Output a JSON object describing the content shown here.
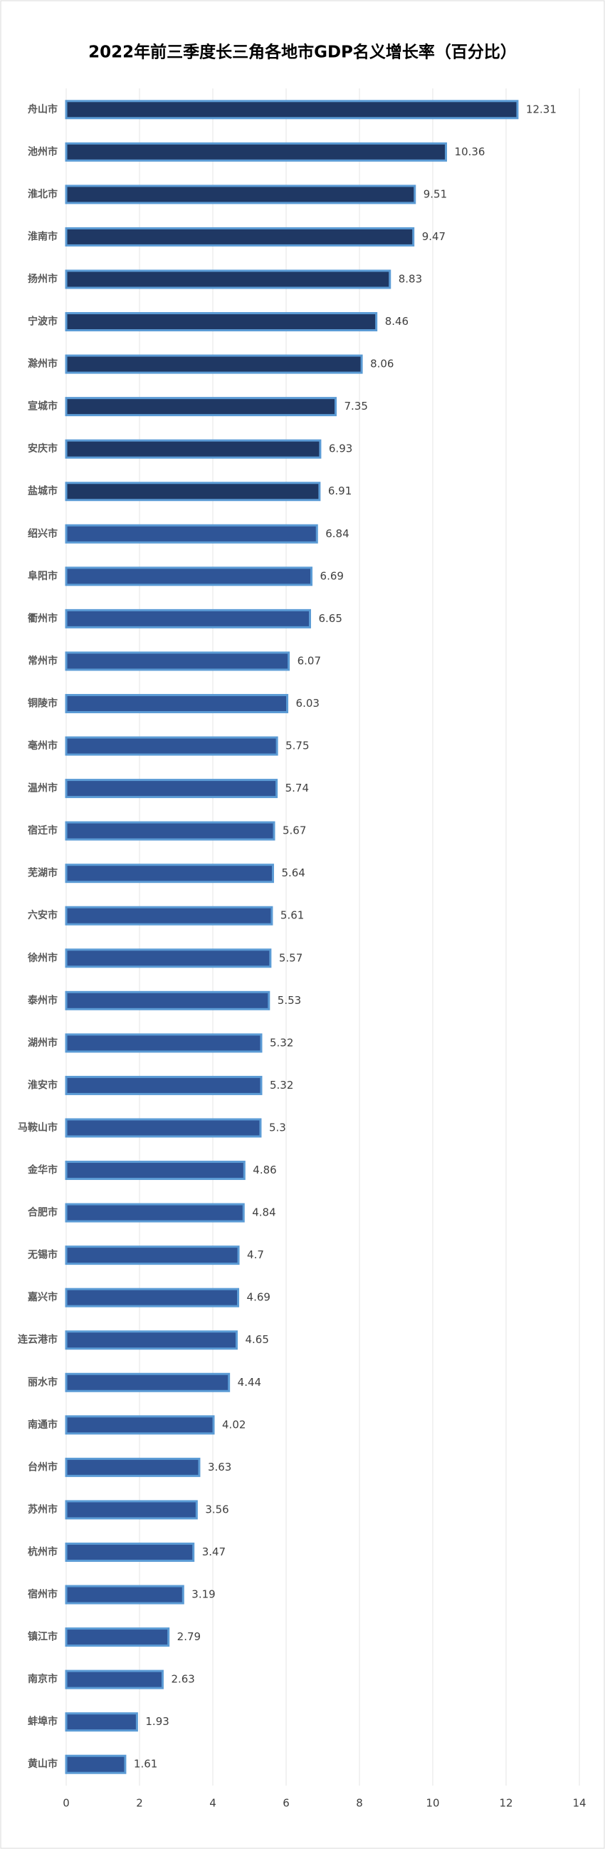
{
  "chart_data": {
    "type": "barh",
    "title": "2022年前三季度长三角各地市GDP名义增长率（百分比）",
    "categories": [
      "舟山市",
      "池州市",
      "淮北市",
      "淮南市",
      "扬州市",
      "宁波市",
      "滁州市",
      "宣城市",
      "安庆市",
      "盐城市",
      "绍兴市",
      "阜阳市",
      "衢州市",
      "常州市",
      "铜陵市",
      "亳州市",
      "温州市",
      "宿迁市",
      "芜湖市",
      "六安市",
      "徐州市",
      "泰州市",
      "湖州市",
      "淮安市",
      "马鞍山市",
      "金华市",
      "合肥市",
      "无锡市",
      "嘉兴市",
      "连云港市",
      "丽水市",
      "南通市",
      "台州市",
      "苏州市",
      "杭州市",
      "宿州市",
      "镇江市",
      "南京市",
      "蚌埠市",
      "黄山市"
    ],
    "values": [
      12.31,
      10.36,
      9.51,
      9.47,
      8.83,
      8.46,
      8.06,
      7.35,
      6.93,
      6.91,
      6.84,
      6.69,
      6.65,
      6.07,
      6.03,
      5.75,
      5.74,
      5.67,
      5.64,
      5.61,
      5.57,
      5.53,
      5.32,
      5.32,
      5.3,
      4.86,
      4.84,
      4.7,
      4.69,
      4.65,
      4.44,
      4.02,
      3.63,
      3.56,
      3.47,
      3.19,
      2.79,
      2.63,
      1.93,
      1.61
    ],
    "colors": [
      "#1f3864",
      "#1f3864",
      "#1f3864",
      "#1f3864",
      "#1f3864",
      "#1f3864",
      "#1f3864",
      "#1f3864",
      "#1f3864",
      "#1f3864",
      "#2f5597",
      "#2f5597",
      "#2f5597",
      "#2f5597",
      "#2f5597",
      "#2f5597",
      "#2f5597",
      "#2f5597",
      "#2f5597",
      "#2f5597",
      "#2f5597",
      "#2f5597",
      "#2f5597",
      "#2f5597",
      "#2f5597",
      "#2f5597",
      "#2f5597",
      "#2f5597",
      "#2f5597",
      "#2f5597",
      "#2f5597",
      "#2f5597",
      "#2f5597",
      "#2f5597",
      "#2f5597",
      "#2f5597",
      "#2f5597",
      "#2f5597",
      "#2f5597",
      "#2f5597"
    ],
    "border_color": "#5b9bd5",
    "xlim": [
      0,
      14
    ],
    "xticks": [
      0,
      2,
      4,
      6,
      8,
      10,
      12,
      14
    ],
    "grid": true
  }
}
